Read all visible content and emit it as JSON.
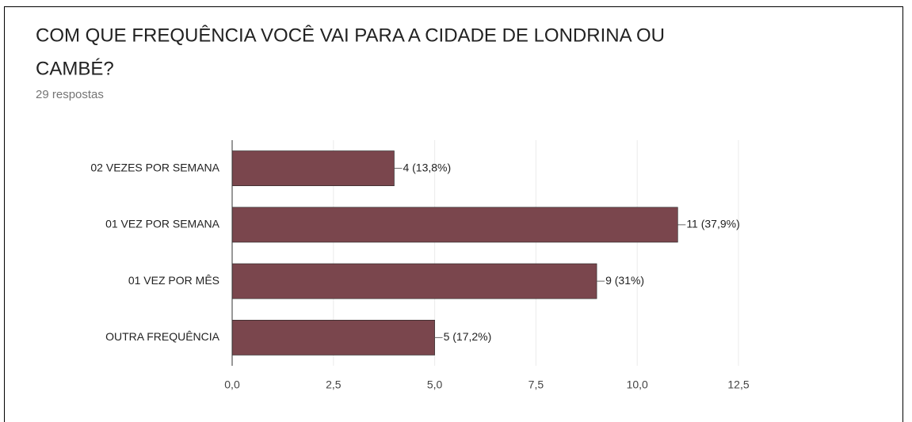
{
  "chart_data": {
    "type": "bar",
    "orientation": "horizontal",
    "title_lines": [
      "COM QUE FREQUÊNCIA VOCÊ VAI PARA A CIDADE DE LONDRINA OU",
      "CAMBÉ?"
    ],
    "subtitle": "29 respostas",
    "categories": [
      "02 VEZES POR SEMANA",
      "01 VEZ POR SEMANA",
      "01 VEZ POR MÊS",
      "OUTRA FREQUÊNCIA"
    ],
    "values": [
      4,
      11,
      9,
      5
    ],
    "value_labels": [
      "4 (13,8%)",
      "11 (37,9%)",
      "9 (31%)",
      "5 (17,2%)"
    ],
    "color": "#7a464d",
    "xlim": [
      0,
      12.5
    ],
    "xticks": [
      {
        "value": 0,
        "label": "0,0"
      },
      {
        "value": 2.5,
        "label": "2,5"
      },
      {
        "value": 5,
        "label": "5,0"
      },
      {
        "value": 7.5,
        "label": "7,5"
      },
      {
        "value": 10,
        "label": "10,0"
      },
      {
        "value": 12.5,
        "label": "12,5"
      }
    ],
    "grid": true
  }
}
